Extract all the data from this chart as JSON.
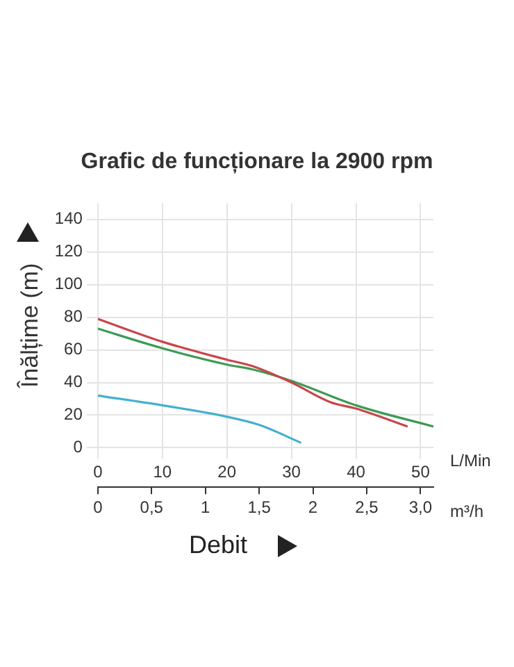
{
  "chart_data": {
    "type": "line",
    "title": "Grafic de funcționare la 2900 rpm",
    "ylabel": "Înălțime (m)",
    "xlabel": "L/Min",
    "x2label": "m³/h",
    "annotations": [
      "Debit"
    ],
    "series": [
      {
        "color": "#c8464a",
        "x": [
          0,
          10,
          20,
          24,
          30,
          36,
          40,
          48
        ],
        "values": [
          79,
          65,
          54,
          50,
          40,
          28,
          24,
          13
        ]
      },
      {
        "color": "#3e9a55",
        "x": [
          0,
          10,
          20,
          24,
          30,
          40,
          52
        ],
        "values": [
          73,
          61,
          51,
          48,
          41,
          26,
          13
        ]
      },
      {
        "color": "#45b0cf",
        "x": [
          0,
          10,
          20,
          25,
          31.5
        ],
        "values": [
          32,
          26,
          19,
          14,
          3
        ]
      }
    ],
    "xlim": [
      0,
      52
    ],
    "xticks": [
      0,
      10,
      20,
      30,
      40,
      50
    ],
    "x2lim": [
      0,
      3.12
    ],
    "x2ticks": [
      0,
      {
        "value": 0.5,
        "label": "0,5"
      },
      1,
      {
        "value": 1.5,
        "label": "1,5"
      },
      2,
      {
        "value": 2.5,
        "label": "2,5"
      },
      {
        "value": 3,
        "label": "3,0"
      }
    ],
    "ylim": [
      0,
      150
    ],
    "yticks": [
      0,
      20,
      40,
      60,
      80,
      100,
      120,
      140
    ],
    "grid": true,
    "legend": false,
    "marker": "none",
    "line_style": "solid"
  }
}
